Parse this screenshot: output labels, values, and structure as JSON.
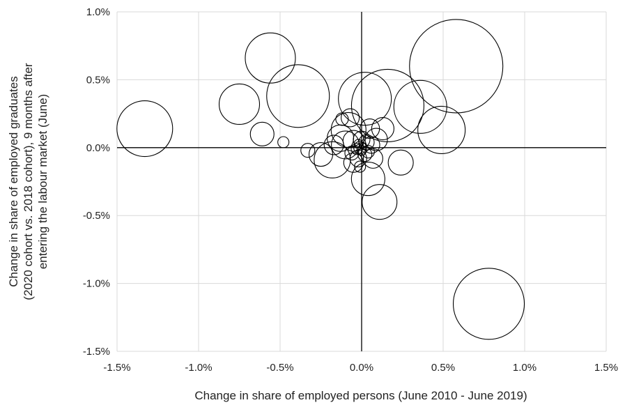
{
  "chart_data": {
    "type": "scatter",
    "title": "",
    "xlabel": "Change in share of employed persons (June 2010 - June 2019)",
    "ylabel": [
      "Change in share of employed graduates",
      "(2020 cohort vs. 2018 cohort), 9 months after",
      "entering the labour market (June)"
    ],
    "xlim": [
      -1.5,
      1.5
    ],
    "ylim": [
      -1.5,
      1.0
    ],
    "x_ticks": [
      -1.5,
      -1.0,
      -0.5,
      0.0,
      0.5,
      1.0,
      1.5
    ],
    "x_tick_labels": [
      "-1.5%",
      "-1.0%",
      "-0.5%",
      "0.0%",
      "0.5%",
      "1.0%",
      "1.5%"
    ],
    "y_ticks": [
      1.0,
      0.5,
      0.0,
      -0.5,
      -1.0,
      -1.5
    ],
    "y_tick_labels": [
      "1.0%",
      "0.5%",
      "0.0%",
      "-0.5%",
      "-1.0%",
      "-1.5%"
    ],
    "grid": true,
    "legend": "none",
    "bubble_stroke": "#000000",
    "grid_color": "#d9d9d9",
    "series": [
      {
        "points": [
          {
            "x": -1.33,
            "y": 0.14,
            "r": 40
          },
          {
            "x": -0.56,
            "y": 0.66,
            "r": 36
          },
          {
            "x": -0.75,
            "y": 0.32,
            "r": 29
          },
          {
            "x": -0.39,
            "y": 0.38,
            "r": 45
          },
          {
            "x": -0.61,
            "y": 0.1,
            "r": 17
          },
          {
            "x": -0.48,
            "y": 0.04,
            "r": 8
          },
          {
            "x": 0.58,
            "y": 0.6,
            "r": 67
          },
          {
            "x": 0.16,
            "y": 0.31,
            "r": 52
          },
          {
            "x": 0.36,
            "y": 0.3,
            "r": 38
          },
          {
            "x": 0.02,
            "y": 0.36,
            "r": 38
          },
          {
            "x": 0.49,
            "y": 0.13,
            "r": 34
          },
          {
            "x": 0.78,
            "y": -1.15,
            "r": 51
          },
          {
            "x": 0.11,
            "y": -0.4,
            "r": 25
          },
          {
            "x": 0.04,
            "y": -0.23,
            "r": 24
          },
          {
            "x": 0.24,
            "y": -0.11,
            "r": 18
          },
          {
            "x": -0.25,
            "y": -0.05,
            "r": 17
          },
          {
            "x": -0.18,
            "y": -0.09,
            "r": 26
          },
          {
            "x": -0.07,
            "y": 0.22,
            "r": 13
          },
          {
            "x": -0.12,
            "y": 0.21,
            "r": 9
          },
          {
            "x": -0.08,
            "y": 0.13,
            "r": 25
          },
          {
            "x": -0.13,
            "y": 0.07,
            "r": 19
          },
          {
            "x": -0.17,
            "y": 0.02,
            "r": 14
          },
          {
            "x": -0.33,
            "y": -0.02,
            "r": 10
          },
          {
            "x": 0.05,
            "y": 0.14,
            "r": 14
          },
          {
            "x": 0.13,
            "y": 0.14,
            "r": 16
          },
          {
            "x": 0.09,
            "y": 0.06,
            "r": 16
          },
          {
            "x": 0.06,
            "y": 0.02,
            "r": 12
          },
          {
            "x": -0.05,
            "y": -0.11,
            "r": 14
          },
          {
            "x": 0.07,
            "y": -0.08,
            "r": 14
          },
          {
            "x": 0.02,
            "y": -0.05,
            "r": 10
          },
          {
            "x": -0.1,
            "y": 0.02,
            "r": 20
          },
          {
            "x": -0.05,
            "y": 0.05,
            "r": 15
          },
          {
            "x": -0.02,
            "y": -0.08,
            "r": 12
          },
          {
            "x": 0.03,
            "y": 0.04,
            "r": 11
          },
          {
            "x": -0.01,
            "y": 0.0,
            "r": 9
          },
          {
            "x": 0.0,
            "y": -0.02,
            "r": 7
          },
          {
            "x": -0.02,
            "y": 0.03,
            "r": 6
          },
          {
            "x": 0.01,
            "y": 0.01,
            "r": 5
          },
          {
            "x": -0.03,
            "y": -0.01,
            "r": 8
          },
          {
            "x": 0.04,
            "y": -0.03,
            "r": 9
          },
          {
            "x": -0.06,
            "y": -0.04,
            "r": 10
          },
          {
            "x": 0.0,
            "y": 0.06,
            "r": 12
          },
          {
            "x": -0.01,
            "y": -0.14,
            "r": 8
          }
        ]
      }
    ]
  }
}
